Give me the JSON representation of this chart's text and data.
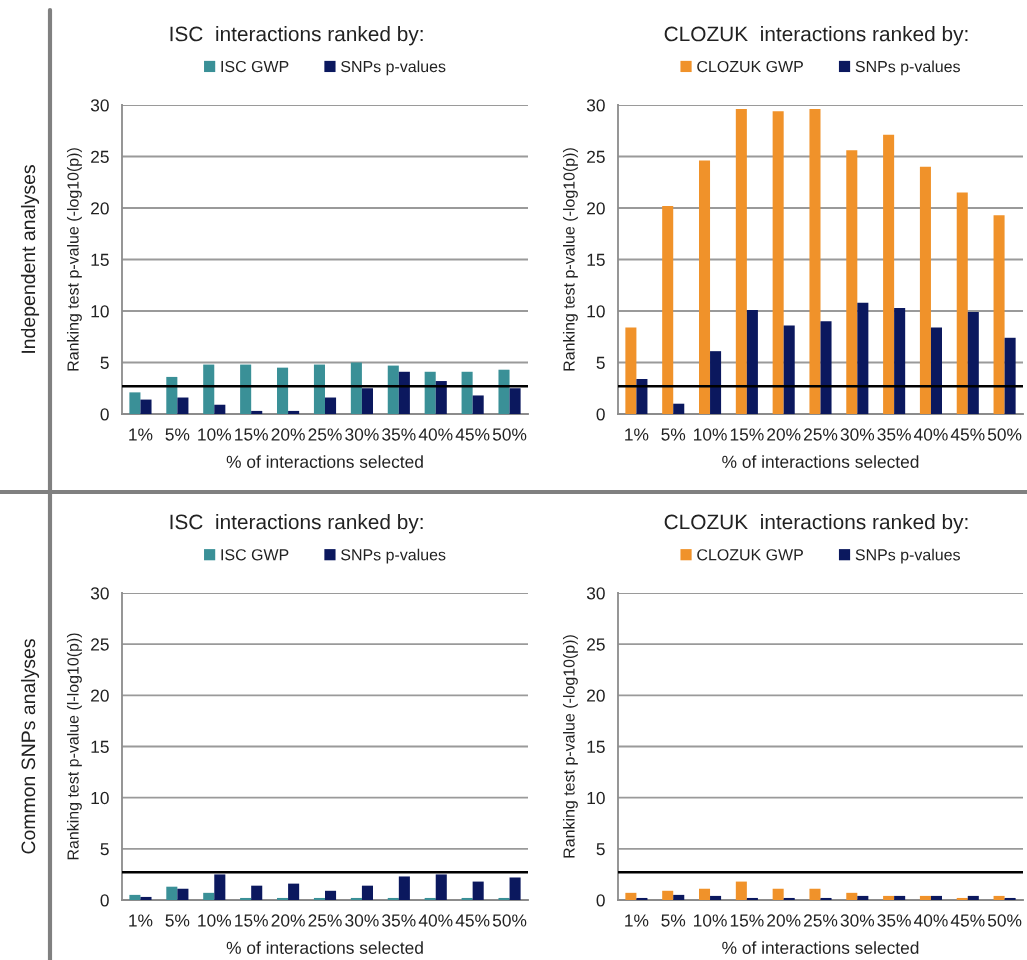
{
  "chart_data": [
    {
      "type": "bar",
      "title": "ISC  interactions ranked by:",
      "categories": [
        "1%",
        "5%",
        "10%",
        "15%",
        "20%",
        "25%",
        "30%",
        "35%",
        "40%",
        "45%",
        "50%"
      ],
      "series": [
        {
          "name": "ISC GWP",
          "color": "#3a9097",
          "values": [
            2.1,
            3.6,
            4.8,
            4.8,
            4.5,
            4.8,
            5.0,
            4.7,
            4.1,
            4.1,
            4.3
          ]
        },
        {
          "name": "SNPs p-values",
          "color": "#0b185e",
          "values": [
            1.4,
            1.6,
            0.9,
            0.3,
            0.3,
            1.6,
            2.5,
            4.1,
            3.2,
            1.8,
            2.5
          ]
        }
      ],
      "xlabel": "% of interactions selected",
      "ylabel": "Ranking test p-value (-log10(p))",
      "ylim": [
        0,
        30
      ],
      "yticks": [
        0,
        5,
        10,
        15,
        20,
        25,
        30
      ],
      "grid": "y",
      "legend": "top",
      "ref_lines": [
        {
          "axis": "y",
          "value": 2.7,
          "color": "#000000"
        }
      ],
      "annotations": [
        "Independent analyses"
      ]
    },
    {
      "type": "bar",
      "title": "CLOZUK  interactions ranked by:",
      "categories": [
        "1%",
        "5%",
        "10%",
        "15%",
        "20%",
        "25%",
        "30%",
        "35%",
        "40%",
        "45%",
        "50%"
      ],
      "series": [
        {
          "name": "CLOZUK GWP",
          "color": "#f0922a",
          "values": [
            8.4,
            20.2,
            24.6,
            29.6,
            29.4,
            29.6,
            25.6,
            27.1,
            24.0,
            21.5,
            19.3
          ]
        },
        {
          "name": "SNPs p-values",
          "color": "#0b185e",
          "values": [
            3.4,
            1.0,
            6.1,
            10.1,
            8.6,
            9.0,
            10.8,
            10.3,
            8.4,
            9.9,
            7.4
          ]
        }
      ],
      "xlabel": "% of interactions selected",
      "ylabel": "Ranking test p-value (-log10(p))",
      "ylim": [
        0,
        30
      ],
      "yticks": [
        0,
        5,
        10,
        15,
        20,
        25,
        30
      ],
      "grid": "y",
      "legend": "top",
      "ref_lines": [
        {
          "axis": "y",
          "value": 2.7,
          "color": "#000000"
        }
      ]
    },
    {
      "type": "bar",
      "title": "ISC  interactions ranked by:",
      "categories": [
        "1%",
        "5%",
        "10%",
        "15%",
        "20%",
        "25%",
        "30%",
        "35%",
        "40%",
        "45%",
        "50%"
      ],
      "series": [
        {
          "name": "ISC GWP",
          "color": "#3a9097",
          "values": [
            0.5,
            1.3,
            0.7,
            0.2,
            0.2,
            0.2,
            0.2,
            0.2,
            0.2,
            0.2,
            0.2
          ]
        },
        {
          "name": "SNPs p-values",
          "color": "#0b185e",
          "values": [
            0.3,
            1.1,
            2.5,
            1.4,
            1.6,
            0.9,
            1.4,
            2.3,
            2.5,
            1.8,
            2.2
          ]
        }
      ],
      "xlabel": "% of interactions selected",
      "ylabel": "Ranking test p-value (l-log10(p))",
      "ylim": [
        0,
        30
      ],
      "yticks": [
        0,
        5,
        10,
        15,
        20,
        25,
        30
      ],
      "grid": "y",
      "legend": "top",
      "ref_lines": [
        {
          "axis": "y",
          "value": 2.7,
          "color": "#000000"
        }
      ],
      "annotations": [
        "Common SNPs analyses"
      ]
    },
    {
      "type": "bar",
      "title": "CLOZUK  interactions ranked by:",
      "categories": [
        "1%",
        "5%",
        "10%",
        "15%",
        "20%",
        "25%",
        "30%",
        "35%",
        "40%",
        "45%",
        "50%"
      ],
      "series": [
        {
          "name": "CLOZUK GWP",
          "color": "#f0922a",
          "values": [
            0.7,
            0.9,
            1.1,
            1.8,
            1.1,
            1.1,
            0.7,
            0.4,
            0.4,
            0.2,
            0.4
          ]
        },
        {
          "name": "SNPs p-values",
          "color": "#0b185e",
          "values": [
            0.2,
            0.5,
            0.4,
            0.2,
            0.2,
            0.2,
            0.4,
            0.4,
            0.4,
            0.4,
            0.2
          ]
        }
      ],
      "xlabel": "% of interactions selected",
      "ylabel": "Ranking test p-value (-log10(p))",
      "ylim": [
        0,
        30
      ],
      "yticks": [
        0,
        5,
        10,
        15,
        20,
        25,
        30
      ],
      "grid": "y",
      "legend": "top",
      "ref_lines": [
        {
          "axis": "y",
          "value": 2.7,
          "color": "#000000"
        }
      ]
    }
  ]
}
